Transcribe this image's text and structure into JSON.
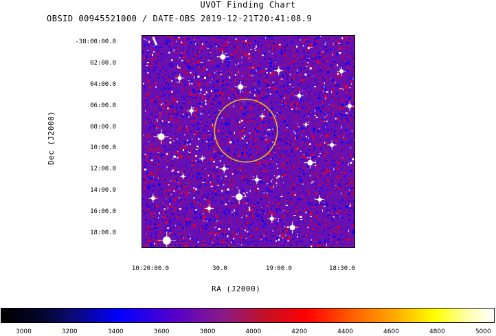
{
  "chart": {
    "title": "UVOT Finding Chart",
    "subtitle": "OBSID 00945521000 / DATE-OBS 2019-12-21T20:41:08.9",
    "dec_label": "Dec (J2000)",
    "ra_label": "RA (J2000)",
    "dec_ticks": [
      "-38:00:00.0",
      "02:00.0",
      "04:00.0",
      "06:00.0",
      "08:00.0",
      "10:00.0",
      "12:00.0",
      "14:00.0",
      "16:00.0",
      "18:00.0"
    ],
    "ra_ticks": [
      "10:20:00.0",
      "30.0",
      "19:00.0",
      "18:30.0"
    ],
    "colorbar_ticks": [
      "3000",
      "3200",
      "3400",
      "3600",
      "3800",
      "4000",
      "4200",
      "4400",
      "4600",
      "4800",
      "5000"
    ]
  },
  "chart_data": {
    "type": "heatmap",
    "title": "UVOT Finding Chart",
    "subtitle": "OBSID 00945521000 / DATE-OBS 2019-12-21T20:41:08.9",
    "xlabel": "RA (J2000)",
    "ylabel": "Dec (J2000)",
    "x_ticks": [
      "10:20:00.0",
      "30.0",
      "19:00.0",
      "18:30.0"
    ],
    "y_ticks": [
      "-38:00:00.0",
      "02:00.0",
      "04:00.0",
      "06:00.0",
      "08:00.0",
      "10:00.0",
      "12:00.0",
      "14:00.0",
      "16:00.0",
      "18:00.0"
    ],
    "colorbar": {
      "min": 2900,
      "max": 5050,
      "ticks": [
        3000,
        3200,
        3400,
        3600,
        3800,
        4000,
        4200,
        4400,
        4600,
        4800,
        5000
      ]
    },
    "region_circle_color": "#e8c020",
    "stars_color": "#ffffff"
  }
}
